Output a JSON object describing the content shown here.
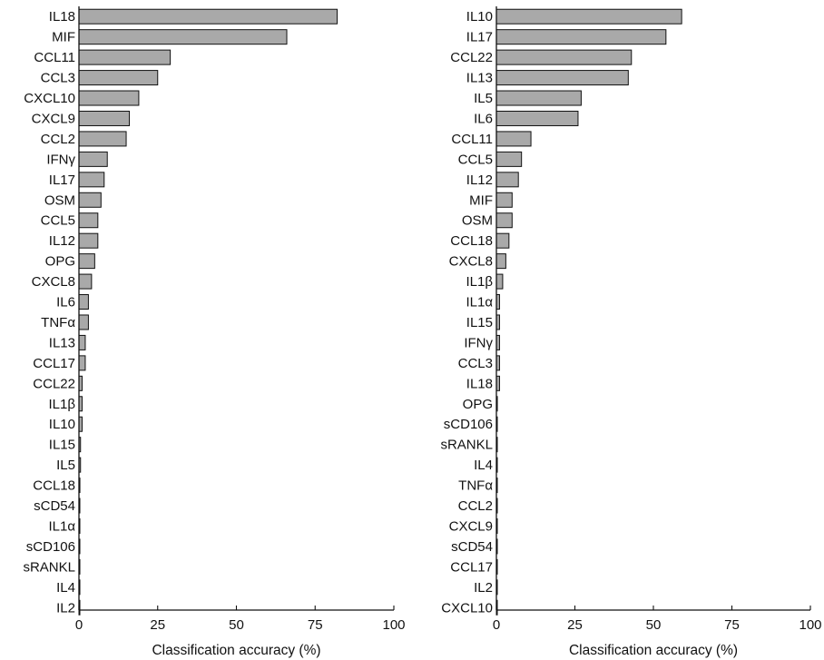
{
  "chart_data": [
    {
      "type": "bar",
      "orientation": "horizontal",
      "xlabel": "Classification accuracy (%)",
      "xlim": [
        0,
        100
      ],
      "xticks": [
        "0",
        "25",
        "50",
        "75",
        "100"
      ],
      "categories": [
        "IL18",
        "MIF",
        "CCL11",
        "CCL3",
        "CXCL10",
        "CXCL9",
        "CCL2",
        "IFNγ",
        "IL17",
        "OSM",
        "CCL5",
        "IL12",
        "OPG",
        "CXCL8",
        "IL6",
        "TNFα",
        "IL13",
        "CCL17",
        "CCL22",
        "IL1β",
        "IL10",
        "IL15",
        "IL5",
        "CCL18",
        "sCD54",
        "IL1α",
        "sCD106",
        "sRANKL",
        "IL4",
        "IL2"
      ],
      "values": [
        82,
        66,
        29,
        25,
        19,
        16,
        15,
        9,
        8,
        7,
        6,
        6,
        5,
        4,
        3,
        3,
        2,
        2,
        1,
        1,
        1,
        0.5,
        0.5,
        0.3,
        0.2,
        0.2,
        0.2,
        0.2,
        0.2,
        0.2
      ],
      "bar_color": "#a9a9a9"
    },
    {
      "type": "bar",
      "orientation": "horizontal",
      "xlabel": "Classification accuracy (%)",
      "xlim": [
        0,
        100
      ],
      "xticks": [
        "0",
        "25",
        "50",
        "75",
        "100"
      ],
      "categories": [
        "IL10",
        "IL17",
        "CCL22",
        "IL13",
        "IL5",
        "IL6",
        "CCL11",
        "CCL5",
        "IL12",
        "MIF",
        "OSM",
        "CCL18",
        "CXCL8",
        "IL1β",
        "IL1α",
        "IL15",
        "IFNγ",
        "CCL3",
        "IL18",
        "OPG",
        "sCD106",
        "sRANKL",
        "IL4",
        "TNFα",
        "CCL2",
        "CXCL9",
        "sCD54",
        "CCL17",
        "IL2",
        "CXCL10"
      ],
      "values": [
        59,
        54,
        43,
        42,
        27,
        26,
        11,
        8,
        7,
        5,
        5,
        4,
        3,
        2,
        1,
        1,
        1,
        1,
        1,
        0.3,
        0.2,
        0.2,
        0.2,
        0.2,
        0.2,
        0.2,
        0.2,
        0.2,
        0.2,
        0.2
      ],
      "bar_color": "#a9a9a9"
    }
  ]
}
